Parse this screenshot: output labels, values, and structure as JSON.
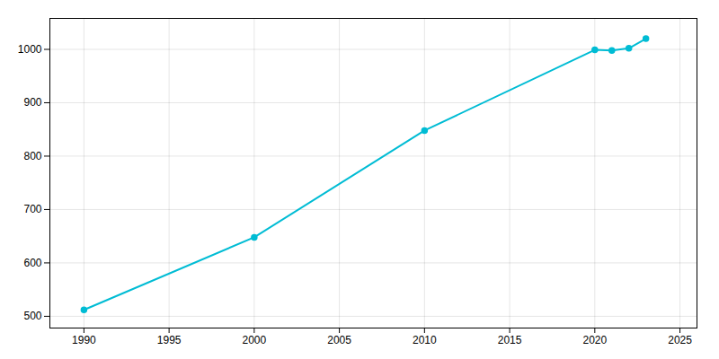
{
  "chart_data": {
    "type": "line",
    "x": [
      1990,
      2000,
      2010,
      2020,
      2021,
      2022,
      2023
    ],
    "values": [
      512,
      648,
      848,
      999,
      998,
      1002,
      1020
    ],
    "color": "#00bcd4",
    "marker": "circle",
    "xlim": [
      1988,
      2026
    ],
    "ylim": [
      478,
      1058
    ],
    "xticks": [
      1990,
      1995,
      2000,
      2005,
      2010,
      2015,
      2020,
      2025
    ],
    "yticks": [
      500,
      600,
      700,
      800,
      900,
      1000
    ],
    "grid": true
  }
}
